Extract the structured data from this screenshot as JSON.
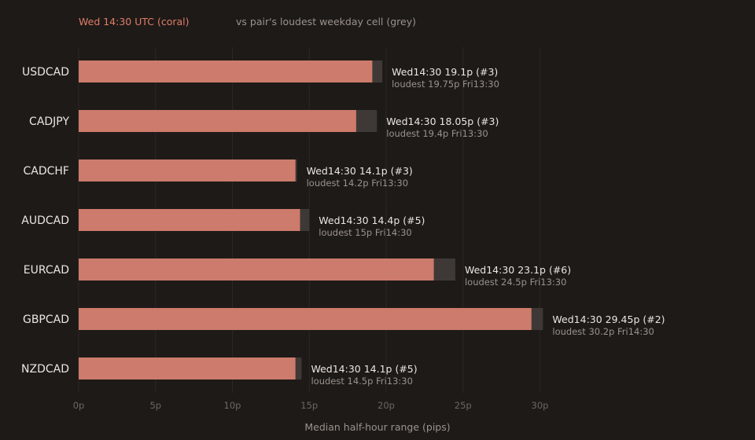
{
  "colors": {
    "background": "#1e1a18",
    "coral": "#cd7b6c",
    "grey_bar": "#3e3936",
    "grid": "#2c2724",
    "legend_coral": "#e07d68"
  },
  "chart_data": {
    "type": "bar",
    "orientation": "horizontal",
    "legend": {
      "coral_label": "Wed 14:30 UTC (coral)",
      "grey_label": "vs pair's loudest weekday cell (grey)",
      "placement": "top-left"
    },
    "xlabel": "Median half-hour range (pips)",
    "xlim": [
      0,
      30
    ],
    "xticks": [
      {
        "value": 0,
        "label": "0p"
      },
      {
        "value": 5,
        "label": "5p"
      },
      {
        "value": 10,
        "label": "10p"
      },
      {
        "value": 15,
        "label": "15p"
      },
      {
        "value": 20,
        "label": "20p"
      },
      {
        "value": 25,
        "label": "25p"
      },
      {
        "value": 30,
        "label": "30p"
      }
    ],
    "grid": true,
    "categories": [
      "USDCAD",
      "CADJPY",
      "CADCHF",
      "AUDCAD",
      "EURCAD",
      "GBPCAD",
      "NZDCAD"
    ],
    "series": [
      {
        "key": "wed",
        "values": [
          19.1,
          18.05,
          14.1,
          14.4,
          23.1,
          29.45,
          14.1
        ]
      },
      {
        "key": "loudest",
        "values": [
          19.75,
          19.4,
          14.2,
          15,
          24.5,
          30.2,
          14.5
        ]
      }
    ],
    "annotations": [
      {
        "main": "Wed14:30 19.1p (#3)",
        "sub": "loudest 19.75p Fri13:30"
      },
      {
        "main": "Wed14:30 18.05p (#3)",
        "sub": "loudest 19.4p Fri13:30"
      },
      {
        "main": "Wed14:30 14.1p (#3)",
        "sub": "loudest 14.2p Fri13:30"
      },
      {
        "main": "Wed14:30 14.4p (#5)",
        "sub": "loudest 15p Fri14:30"
      },
      {
        "main": "Wed14:30 23.1p (#6)",
        "sub": "loudest 24.5p Fri13:30"
      },
      {
        "main": "Wed14:30 29.45p (#2)",
        "sub": "loudest 30.2p Fri14:30"
      },
      {
        "main": "Wed14:30 14.1p (#5)",
        "sub": "loudest 14.5p Fri13:30"
      }
    ]
  }
}
